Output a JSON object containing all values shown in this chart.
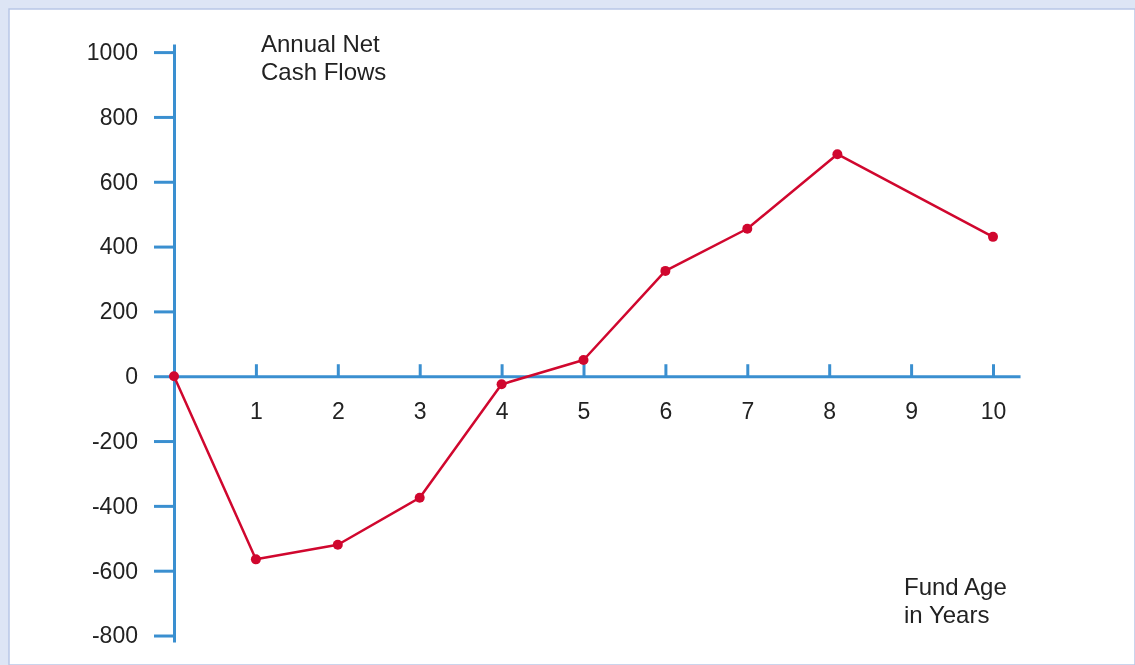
{
  "chart_data": {
    "type": "line",
    "ylabel": "Annual Net\nCash Flows",
    "xlabel": "Fund Age\nin Years",
    "x": [
      0,
      1,
      2,
      3,
      4,
      5,
      6,
      7,
      8.1,
      10
    ],
    "series": [
      {
        "color": "#d0072e",
        "values": [
          0,
          -565,
          -520,
          -375,
          -25,
          50,
          325,
          455,
          685,
          430
        ]
      }
    ],
    "xlim": [
      0,
      10.33
    ],
    "xticks": [
      1,
      2,
      3,
      4,
      5,
      6,
      7,
      8,
      9,
      10
    ],
    "ylim": [
      -820,
      1025
    ],
    "yticks": [
      -800,
      -600,
      -400,
      -200,
      0,
      200,
      400,
      600,
      800,
      1000
    ],
    "grid": false,
    "marker": "circle",
    "line_style": "solid"
  }
}
